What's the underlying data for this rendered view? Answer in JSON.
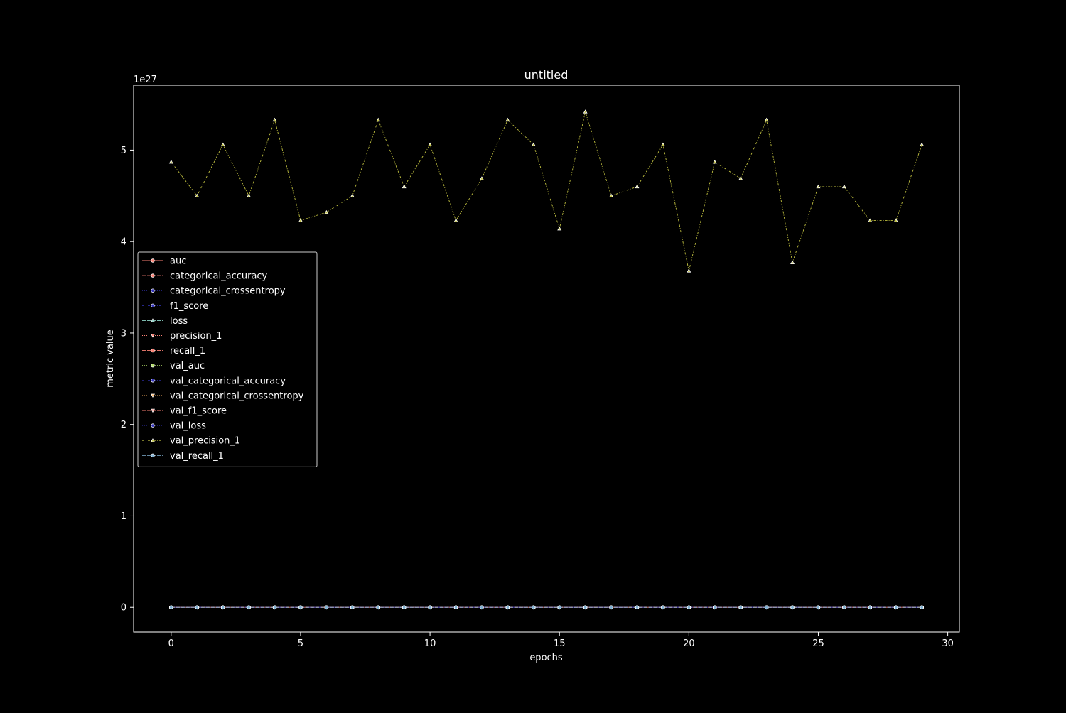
{
  "chart_data": {
    "type": "line",
    "title": "untitled",
    "xlabel": "epochs",
    "ylabel": "metric value",
    "y_offset_label": "1e27",
    "y_scale_factor": 1e+27,
    "xlim": [
      -1.45,
      30.45
    ],
    "ylim": [
      -0.27,
      5.71
    ],
    "x_ticks": [
      0,
      5,
      10,
      15,
      20,
      25,
      30
    ],
    "y_ticks": [
      0,
      1,
      2,
      3,
      4,
      5
    ],
    "grid": false,
    "legend_position": "center-left",
    "x": [
      0,
      1,
      2,
      3,
      4,
      5,
      6,
      7,
      8,
      9,
      10,
      11,
      12,
      13,
      14,
      15,
      16,
      17,
      18,
      19,
      20,
      21,
      22,
      23,
      24,
      25,
      26,
      27,
      28,
      29
    ],
    "series": [
      {
        "name": "auc",
        "color": "#fa8174",
        "marker": "circle",
        "dash": "",
        "values": [
          0,
          0,
          0,
          0,
          0,
          0,
          0,
          0,
          0,
          0,
          0,
          0,
          0,
          0,
          0,
          0,
          0,
          0,
          0,
          0,
          0,
          0,
          0,
          0,
          0,
          0,
          0,
          0,
          0,
          0
        ]
      },
      {
        "name": "categorical_accuracy",
        "color": "#fa8174",
        "marker": "circle",
        "dash": "5,2",
        "values": [
          0,
          0,
          0,
          0,
          0,
          0,
          0,
          0,
          0,
          0,
          0,
          0,
          0,
          0,
          0,
          0,
          0,
          0,
          0,
          0,
          0,
          0,
          0,
          0,
          0,
          0,
          0,
          0,
          0,
          0
        ]
      },
      {
        "name": "categorical_crossentropy",
        "color": "#3333bb",
        "marker": "circle",
        "dash": "1,2",
        "values": [
          0,
          0,
          0,
          0,
          0,
          0,
          0,
          0,
          0,
          0,
          0,
          0,
          0,
          0,
          0,
          0,
          0,
          0,
          0,
          0,
          0,
          0,
          0,
          0,
          0,
          0,
          0,
          0,
          0,
          0
        ]
      },
      {
        "name": "f1_score",
        "color": "#3333bb",
        "marker": "circle",
        "dash": "3,2,1,2",
        "values": [
          0,
          0,
          0,
          0,
          0,
          0,
          0,
          0,
          0,
          0,
          0,
          0,
          0,
          0,
          0,
          0,
          0,
          0,
          0,
          0,
          0,
          0,
          0,
          0,
          0,
          0,
          0,
          0,
          0,
          0
        ]
      },
      {
        "name": "loss",
        "color": "#8dd3c7",
        "marker": "triangle-up",
        "dash": "5,2",
        "values": [
          0,
          0,
          0,
          0,
          0,
          0,
          0,
          0,
          0,
          0,
          0,
          0,
          0,
          0,
          0,
          0,
          0,
          0,
          0,
          0,
          0,
          0,
          0,
          0,
          0,
          0,
          0,
          0,
          0,
          0
        ]
      },
      {
        "name": "precision_1",
        "color": "#fa8174",
        "marker": "triangle-down",
        "dash": "1,2",
        "values": [
          0,
          0,
          0,
          0,
          0,
          0,
          0,
          0,
          0,
          0,
          0,
          0,
          0,
          0,
          0,
          0,
          0,
          0,
          0,
          0,
          0,
          0,
          0,
          0,
          0,
          0,
          0,
          0,
          0,
          0
        ]
      },
      {
        "name": "recall_1",
        "color": "#fa8174",
        "marker": "circle",
        "dash": "5,2",
        "values": [
          0,
          0,
          0,
          0,
          0,
          0,
          0,
          0,
          0,
          0,
          0,
          0,
          0,
          0,
          0,
          0,
          0,
          0,
          0,
          0,
          0,
          0,
          0,
          0,
          0,
          0,
          0,
          0,
          0,
          0
        ]
      },
      {
        "name": "val_auc",
        "color": "#b3de69",
        "marker": "circle",
        "dash": "1,2",
        "values": [
          0,
          0,
          0,
          0,
          0,
          0,
          0,
          0,
          0,
          0,
          0,
          0,
          0,
          0,
          0,
          0,
          0,
          0,
          0,
          0,
          0,
          0,
          0,
          0,
          0,
          0,
          0,
          0,
          0,
          0
        ]
      },
      {
        "name": "val_categorical_accuracy",
        "color": "#3333bb",
        "marker": "circle",
        "dash": "3,2,1,2",
        "values": [
          0,
          0,
          0,
          0,
          0,
          0,
          0,
          0,
          0,
          0,
          0,
          0,
          0,
          0,
          0,
          0,
          0,
          0,
          0,
          0,
          0,
          0,
          0,
          0,
          0,
          0,
          0,
          0,
          0,
          0
        ]
      },
      {
        "name": "val_categorical_crossentropy",
        "color": "#feb462",
        "marker": "triangle-down",
        "dash": "1,2",
        "values": [
          0,
          0,
          0,
          0,
          0,
          0,
          0,
          0,
          0,
          0,
          0,
          0,
          0,
          0,
          0,
          0,
          0,
          0,
          0,
          0,
          0,
          0,
          0,
          0,
          0,
          0,
          0,
          0,
          0,
          0
        ]
      },
      {
        "name": "val_f1_score",
        "color": "#fa8174",
        "marker": "triangle-down",
        "dash": "5,2",
        "values": [
          0,
          0,
          0,
          0,
          0,
          0,
          0,
          0,
          0,
          0,
          0,
          0,
          0,
          0,
          0,
          0,
          0,
          0,
          0,
          0,
          0,
          0,
          0,
          0,
          0,
          0,
          0,
          0,
          0,
          0
        ]
      },
      {
        "name": "val_loss",
        "color": "#3333bb",
        "marker": "circle",
        "dash": "1,2",
        "values": [
          0,
          0,
          0,
          0,
          0,
          0,
          0,
          0,
          0,
          0,
          0,
          0,
          0,
          0,
          0,
          0,
          0,
          0,
          0,
          0,
          0,
          0,
          0,
          0,
          0,
          0,
          0,
          0,
          0,
          0
        ]
      },
      {
        "name": "val_precision_1",
        "color": "#bfbf3f",
        "marker": "triangle-up",
        "dash": "3,2,1,2",
        "values": [
          4.87,
          4.5,
          5.06,
          4.5,
          5.33,
          4.23,
          4.32,
          4.5,
          5.33,
          4.6,
          5.06,
          4.23,
          4.69,
          5.33,
          5.06,
          4.14,
          5.42,
          4.5,
          4.6,
          5.06,
          3.68,
          4.87,
          4.69,
          5.33,
          3.77,
          4.6,
          4.6,
          4.23,
          4.23,
          5.06
        ]
      },
      {
        "name": "val_recall_1",
        "color": "#81b1d2",
        "marker": "circle",
        "dash": "5,2",
        "values": [
          0,
          0,
          0,
          0,
          0,
          0,
          0,
          0,
          0,
          0,
          0,
          0,
          0,
          0,
          0,
          0,
          0,
          0,
          0,
          0,
          0,
          0,
          0,
          0,
          0,
          0,
          0,
          0,
          0,
          0
        ]
      }
    ]
  }
}
